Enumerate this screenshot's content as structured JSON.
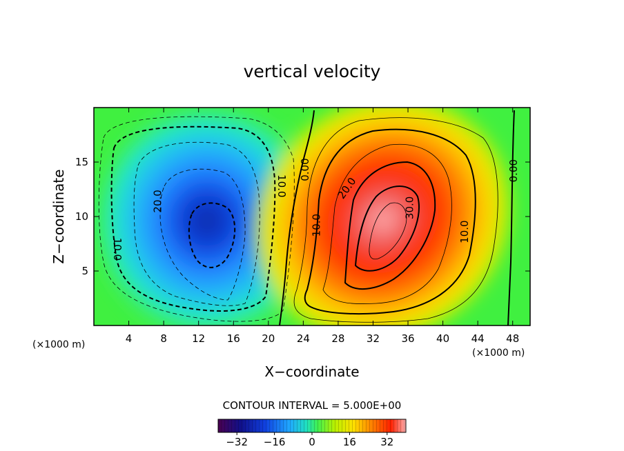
{
  "chart_data": {
    "type": "heatmap",
    "subtype": "filled-contour",
    "title": "vertical velocity",
    "xlabel": "X−coordinate",
    "ylabel": "Z−coordinate",
    "x_unit_left": "(×1000 m)",
    "x_unit_right": "(×1000 m)",
    "xlim": [
      0,
      50
    ],
    "ylim": [
      0,
      20
    ],
    "x_ticks": [
      4,
      8,
      12,
      16,
      20,
      24,
      28,
      32,
      36,
      40,
      44,
      48
    ],
    "y_ticks": [
      5,
      10,
      15
    ],
    "contour_interval_text": "CONTOUR INTERVAL = 5.000E+00",
    "contour_interval": 5,
    "updraft": {
      "center_x": 33,
      "center_z": 9,
      "peak": 35,
      "label": "positive"
    },
    "downdraft": {
      "center_x": 14,
      "center_z": 9,
      "peak": -30,
      "label": "negative"
    },
    "contour_labels": [
      {
        "text": "10.0",
        "x": 2.7,
        "z": 7.0,
        "rot": 90
      },
      {
        "text": "20.0",
        "x": 7.3,
        "z": 11.4,
        "rot": -90
      },
      {
        "text": "10.0",
        "x": 21.5,
        "z": 12.8,
        "rot": 90
      },
      {
        "text": "0.00",
        "x": 24.2,
        "z": 14.3,
        "rot": -90
      },
      {
        "text": "10.0",
        "x": 25.5,
        "z": 9.2,
        "rot": -90
      },
      {
        "text": "20.0",
        "x": 29.0,
        "z": 12.6,
        "rot": -55
      },
      {
        "text": "30.0",
        "x": 36.2,
        "z": 10.8,
        "rot": -90
      },
      {
        "text": "10.0",
        "x": 42.5,
        "z": 8.6,
        "rot": -90
      },
      {
        "text": "0.00",
        "x": 48.1,
        "z": 14.2,
        "rot": -90
      }
    ],
    "colorbar": {
      "range": [
        -40,
        40
      ],
      "tick_labels": [
        "−32",
        "−16",
        "0",
        "16",
        "32"
      ],
      "tick_values": [
        -32,
        -16,
        0,
        16,
        32
      ]
    }
  }
}
